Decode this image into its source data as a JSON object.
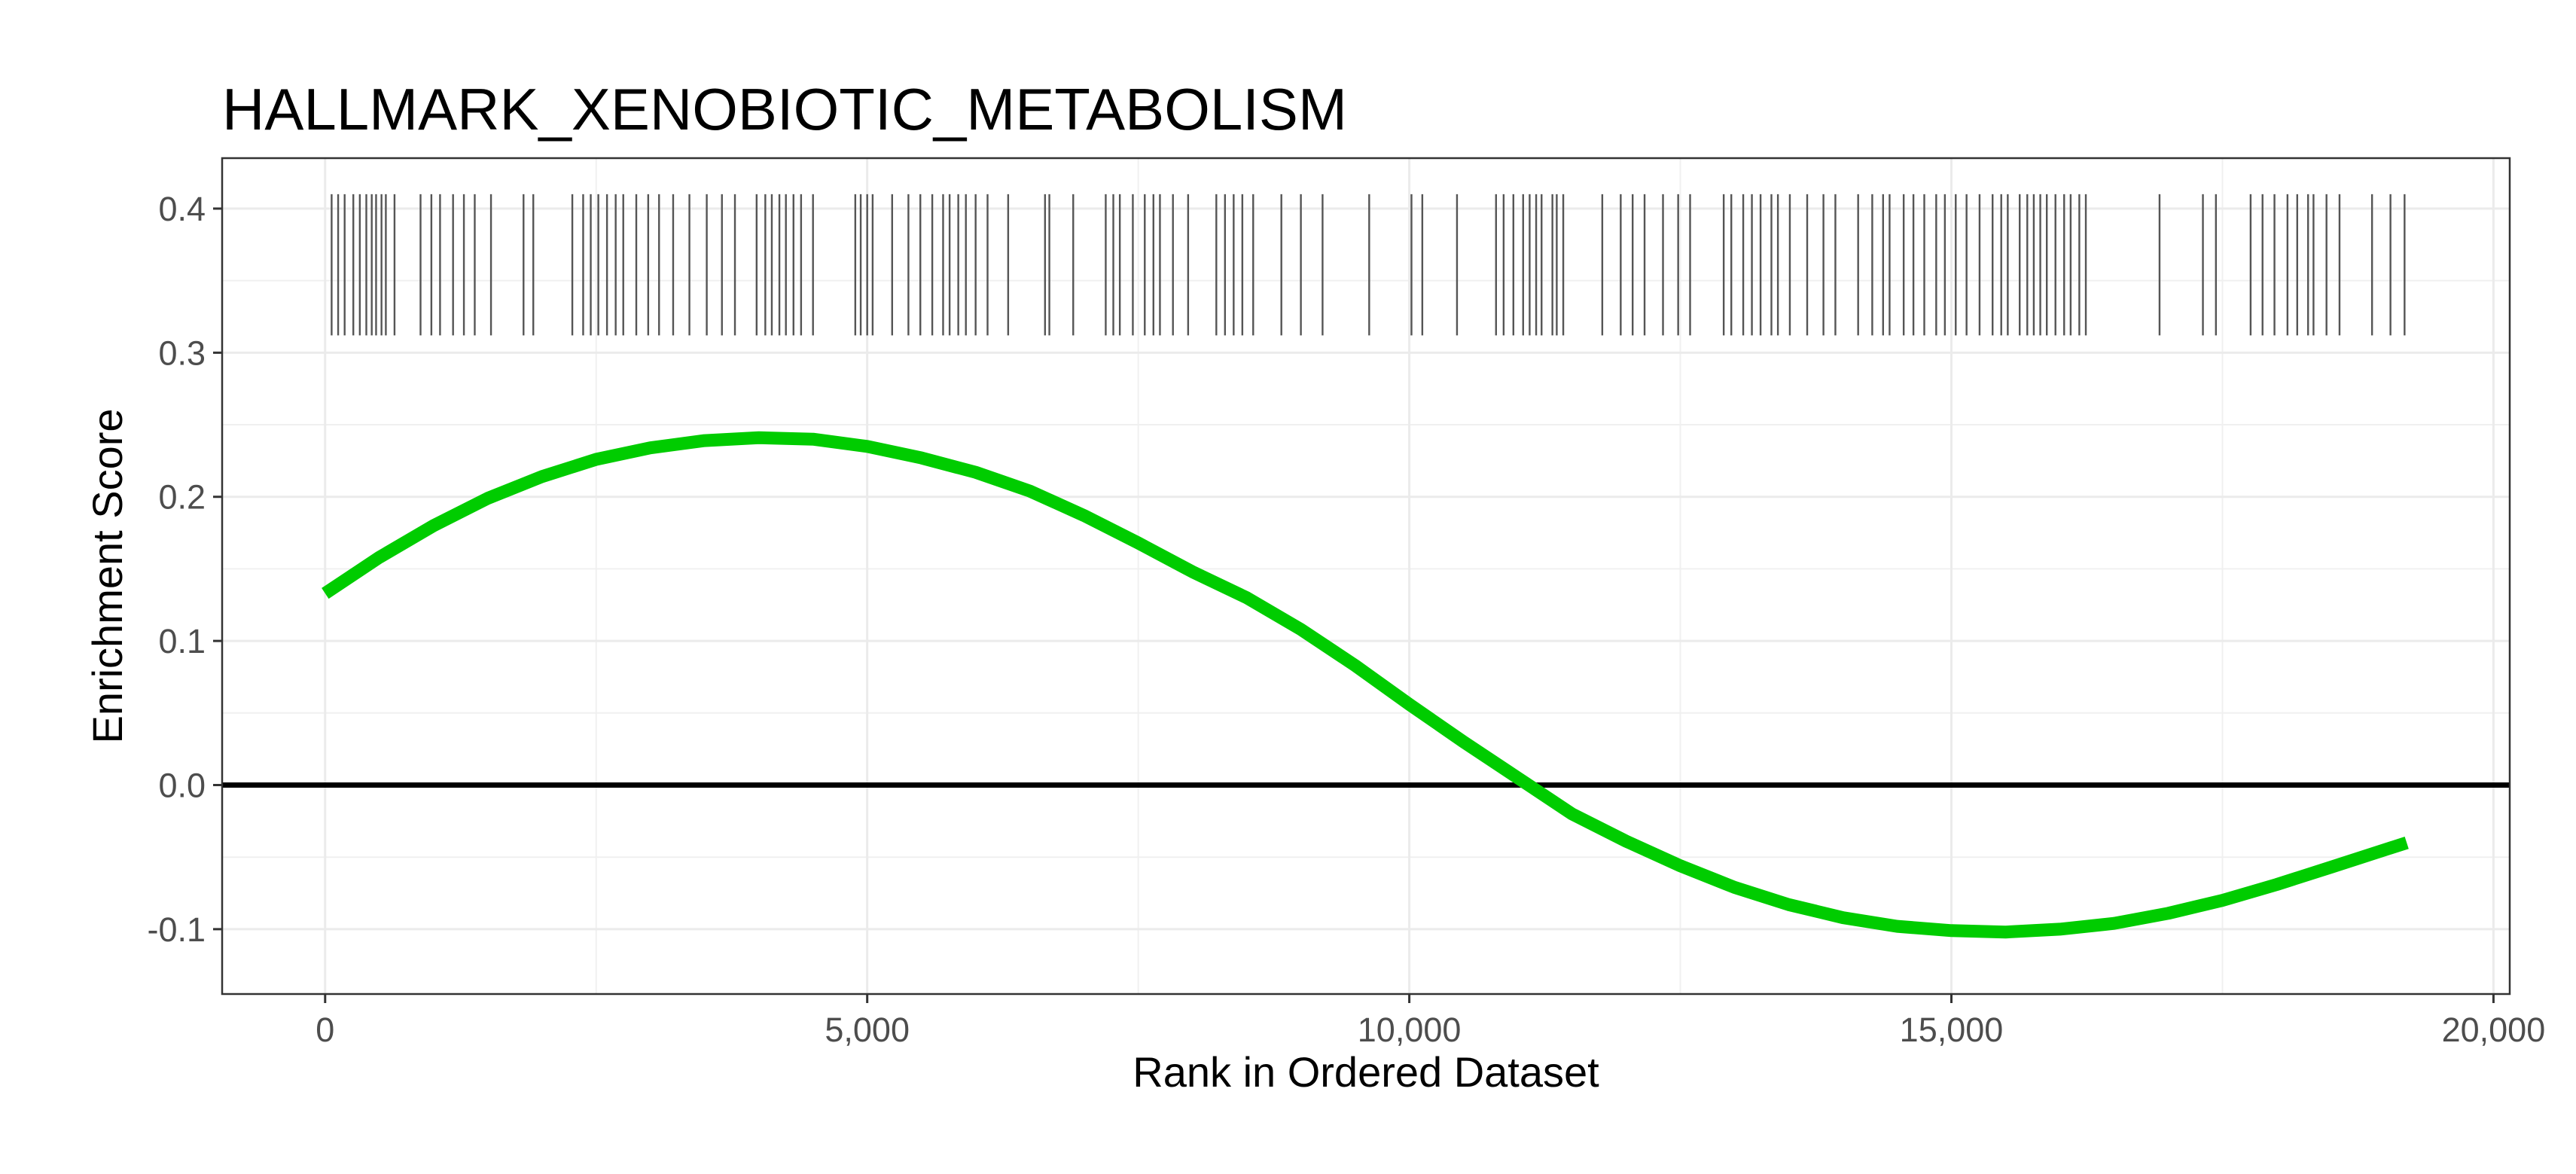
{
  "chart_data": {
    "type": "line",
    "title": "HALLMARK_XENOBIOTIC_METABOLISM",
    "xlabel": "Rank in Ordered Dataset",
    "ylabel": "Enrichment Score",
    "xlim": [
      -950,
      20150
    ],
    "ylim": [
      -0.145,
      0.435
    ],
    "grid": true,
    "legend": "none",
    "x_ticks": [
      0,
      5000,
      10000,
      15000,
      20000
    ],
    "x_tick_labels": [
      "0",
      "5,000",
      "10,000",
      "15,000",
      "20,000"
    ],
    "y_ticks": [
      -0.1,
      0.0,
      0.1,
      0.2,
      0.3,
      0.4
    ],
    "y_tick_labels": [
      "-0.1",
      "0.0",
      "0.1",
      "0.2",
      "0.3",
      "0.4"
    ],
    "reference_line_y": 0.0,
    "series": [
      {
        "color": "#00cc00",
        "x": [
          0,
          500,
          1000,
          1500,
          2000,
          2500,
          3000,
          3500,
          4000,
          4500,
          5000,
          5500,
          6000,
          6500,
          7000,
          7500,
          8000,
          8500,
          9000,
          9500,
          10000,
          10500,
          11000,
          11500,
          12000,
          12500,
          13000,
          13500,
          14000,
          14500,
          15000,
          15500,
          16000,
          16500,
          17000,
          17500,
          18000,
          18500,
          19200
        ],
        "y": [
          0.133,
          0.158,
          0.18,
          0.199,
          0.214,
          0.226,
          0.234,
          0.239,
          0.241,
          0.24,
          0.235,
          0.227,
          0.217,
          0.204,
          0.187,
          0.168,
          0.148,
          0.13,
          0.108,
          0.083,
          0.056,
          0.03,
          0.005,
          -0.02,
          -0.039,
          -0.056,
          -0.071,
          -0.083,
          -0.092,
          -0.098,
          -0.101,
          -0.102,
          -0.1,
          -0.096,
          -0.089,
          -0.08,
          -0.069,
          -0.057,
          -0.04
        ]
      }
    ],
    "gene_hits": [
      60,
      120,
      180,
      260,
      320,
      380,
      430,
      470,
      520,
      560,
      640,
      880,
      980,
      1060,
      1180,
      1280,
      1380,
      1530,
      1830,
      1920,
      2280,
      2380,
      2450,
      2520,
      2600,
      2680,
      2750,
      2870,
      2980,
      3080,
      3210,
      3360,
      3520,
      3660,
      3780,
      3980,
      4060,
      4120,
      4190,
      4250,
      4320,
      4390,
      4500,
      4890,
      4940,
      5000,
      5050,
      5230,
      5380,
      5490,
      5600,
      5700,
      5760,
      5840,
      5910,
      6000,
      6110,
      6300,
      6640,
      6680,
      6900,
      7200,
      7270,
      7330,
      7450,
      7560,
      7640,
      7700,
      7820,
      7960,
      8220,
      8300,
      8380,
      8460,
      8560,
      8820,
      9000,
      9200,
      9630,
      10020,
      10120,
      10440,
      10800,
      10870,
      10960,
      11050,
      11110,
      11170,
      11220,
      11320,
      11360,
      11420,
      11780,
      11950,
      12060,
      12170,
      12340,
      12480,
      12590,
      12900,
      12970,
      13080,
      13160,
      13240,
      13340,
      13400,
      13510,
      13670,
      13820,
      13930,
      14140,
      14270,
      14370,
      14430,
      14560,
      14650,
      14750,
      14860,
      14940,
      15040,
      15140,
      15260,
      15380,
      15460,
      15520,
      15630,
      15700,
      15760,
      15820,
      15880,
      15960,
      16040,
      16100,
      16180,
      16240,
      16920,
      17320,
      17440,
      17760,
      17870,
      17980,
      18100,
      18190,
      18290,
      18340,
      18460,
      18580,
      18880,
      19050,
      19180
    ]
  }
}
